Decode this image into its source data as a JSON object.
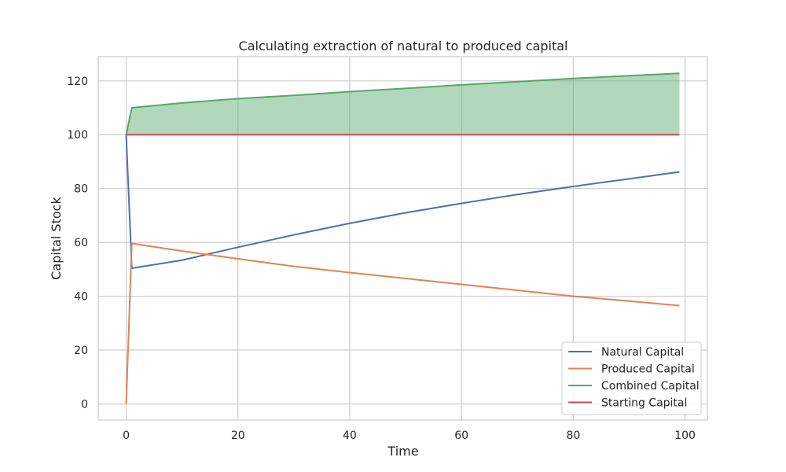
{
  "chart_data": {
    "type": "line",
    "title": "Calculating extraction of natural to produced capital",
    "xlabel": "Time",
    "ylabel": "Capital Stock",
    "xlim": [
      -5,
      104
    ],
    "ylim": [
      -6,
      129
    ],
    "x_ticks": [
      0,
      20,
      40,
      60,
      80,
      100
    ],
    "y_ticks": [
      0,
      20,
      40,
      60,
      80,
      100,
      120
    ],
    "x_tick_labels": [
      "0",
      "20",
      "40",
      "60",
      "80",
      "100"
    ],
    "y_tick_labels": [
      "0",
      "20",
      "40",
      "60",
      "80",
      "100",
      "120"
    ],
    "grid": true,
    "legend_position": "lower right",
    "series": [
      {
        "name": "Natural Capital",
        "color": "#4C72B0",
        "points": [
          [
            0,
            100
          ],
          [
            1,
            50.4
          ],
          [
            10,
            53.4
          ],
          [
            20,
            58.2
          ],
          [
            30,
            62.8
          ],
          [
            40,
            67.1
          ],
          [
            50,
            71.0
          ],
          [
            60,
            74.5
          ],
          [
            70,
            77.8
          ],
          [
            80,
            80.8
          ],
          [
            90,
            83.6
          ],
          [
            99,
            86.2
          ]
        ]
      },
      {
        "name": "Produced Capital",
        "color": "#DD8452",
        "points": [
          [
            0,
            0
          ],
          [
            1,
            59.6
          ],
          [
            10,
            56.8
          ],
          [
            20,
            53.9
          ],
          [
            30,
            51.1
          ],
          [
            40,
            48.8
          ],
          [
            50,
            46.6
          ],
          [
            60,
            44.4
          ],
          [
            70,
            42.2
          ],
          [
            80,
            40.0
          ],
          [
            90,
            38.2
          ],
          [
            99,
            36.5
          ]
        ]
      },
      {
        "name": "Combined Capital",
        "color": "#55A868",
        "points": [
          [
            0,
            100
          ],
          [
            1,
            110.0
          ],
          [
            10,
            111.8
          ],
          [
            20,
            113.4
          ],
          [
            30,
            114.6
          ],
          [
            40,
            116.0
          ],
          [
            50,
            117.2
          ],
          [
            60,
            118.5
          ],
          [
            70,
            119.7
          ],
          [
            80,
            120.9
          ],
          [
            90,
            121.9
          ],
          [
            99,
            122.8
          ]
        ]
      },
      {
        "name": "Starting Capital",
        "color": "#C44E52",
        "points": [
          [
            0,
            100
          ],
          [
            99,
            100
          ]
        ]
      }
    ],
    "fill_between": {
      "upper_series": "Combined Capital",
      "lower_value": 100,
      "color": "#55A868",
      "opacity": 0.45
    }
  }
}
